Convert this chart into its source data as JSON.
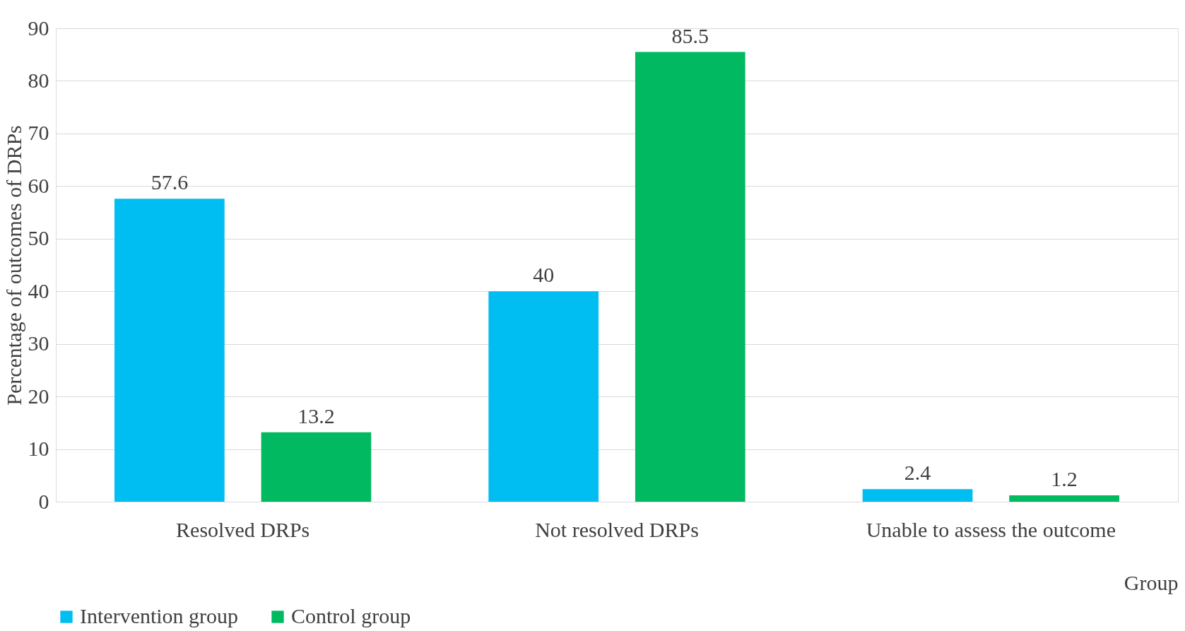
{
  "chart_data": {
    "type": "bar",
    "xlabel": "Group",
    "ylabel": "Percentage of outcomes of DRPs",
    "categories": [
      "Resolved DRPs",
      "Not resolved DRPs",
      "Unable to assess the outcome"
    ],
    "series": [
      {
        "name": "Intervention group",
        "color": "#00bef2",
        "values": [
          57.6,
          40,
          2.4
        ]
      },
      {
        "name": "Control group",
        "color": "#00b960",
        "values": [
          13.2,
          85.5,
          1.2
        ]
      }
    ],
    "ylim": [
      0,
      90
    ],
    "yticks": [
      0,
      10,
      20,
      30,
      40,
      50,
      60,
      70,
      80,
      90
    ],
    "grid": "y",
    "legend": "bottom",
    "data_labels": true
  }
}
